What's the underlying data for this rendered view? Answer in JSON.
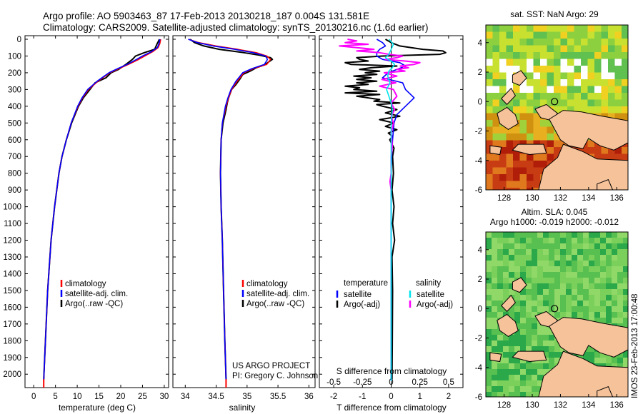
{
  "header": {
    "line1": "Argo profile: AO 5903463_87 17-Feb-2013 20130218_187 0.004S 131.581E",
    "line2": "Climatology: CARS2009. Satellite-adjusted climatology: synTS_20130216.nc (1.6d earlier)"
  },
  "colors": {
    "climatology": "#ff0000",
    "satellite": "#0000ff",
    "argo": "#000000",
    "sat_salinity": "#00e5ee",
    "argo_salinity": "#ff00ff",
    "land": "#f5c29a"
  },
  "footer": {
    "project": "US ARGO PROJECT",
    "pi": "PI: Gregory C. Johnson",
    "credit": "IMOS 23-Feb-2013 17:00:48"
  },
  "chart_data": [
    {
      "type": "line",
      "id": "temperature",
      "xlabel": "temperature (deg C)",
      "xlim": [
        -2,
        31
      ],
      "xticks": [
        0,
        5,
        10,
        15,
        20,
        25,
        30
      ],
      "ylim": [
        2080,
        0
      ],
      "yticks": [
        0,
        100,
        200,
        300,
        400,
        500,
        600,
        700,
        800,
        900,
        1000,
        1100,
        1200,
        1300,
        1400,
        1500,
        1600,
        1700,
        1800,
        1900,
        2000
      ],
      "legend": [
        "climatology",
        "satellite-adj. clim.",
        "Argo(..raw -QC)"
      ],
      "series": [
        {
          "name": "climatology",
          "depth": [
            0,
            25,
            50,
            75,
            100,
            125,
            150,
            175,
            200,
            250,
            300,
            350,
            400,
            500,
            600,
            700,
            800,
            1000,
            1200,
            1500,
            1800,
            2040
          ],
          "values": [
            29.2,
            29,
            28.6,
            27.3,
            25.5,
            23.8,
            21.8,
            19.6,
            17.5,
            14.8,
            12.6,
            11.2,
            10.2,
            8.6,
            7.5,
            6.5,
            5.8,
            4.8,
            4.0,
            3.2,
            2.7,
            2.3
          ]
        },
        {
          "name": "satellite-adj. clim.",
          "depth": [
            0,
            25,
            50,
            75,
            100,
            125,
            150,
            175,
            200,
            250,
            300,
            350,
            400,
            500,
            600,
            700,
            800,
            1000,
            1200,
            1500,
            1800,
            2040
          ],
          "values": [
            29.0,
            28.8,
            28.4,
            27.0,
            25.0,
            23.3,
            21.5,
            19.3,
            17.3,
            14.6,
            12.4,
            11.1,
            10.1,
            8.6,
            7.5,
            6.5,
            5.8,
            4.8,
            4.0,
            3.2,
            2.7,
            2.3
          ]
        },
        {
          "name": "Argo(..raw -QC)",
          "depth": [
            0,
            10,
            30,
            60,
            80,
            100,
            120,
            150,
            180,
            200,
            230,
            260,
            300,
            350,
            400,
            500,
            600,
            700,
            800,
            1000,
            1200,
            1500,
            1800,
            2030
          ],
          "values": [
            28.9,
            28.7,
            28.3,
            27.8,
            25.4,
            23.4,
            22.7,
            21.2,
            19.5,
            17.8,
            16.6,
            14.1,
            12.9,
            11.4,
            10.3,
            8.7,
            7.5,
            6.5,
            5.8,
            4.8,
            4.0,
            3.2,
            2.7,
            2.3
          ]
        }
      ]
    },
    {
      "type": "line",
      "id": "salinity",
      "xlabel": "salinity",
      "xlim": [
        33.8,
        36.1
      ],
      "xticks": [
        34,
        34.5,
        35,
        35.5,
        36
      ],
      "xticklabels": [
        "34",
        "34.5",
        "35",
        "35.5",
        "36"
      ],
      "ylim": [
        2080,
        0
      ],
      "legend": [
        "climatology",
        "satellite-adj. clim.",
        "Argo(..raw -QC)"
      ],
      "series": [
        {
          "name": "climatology",
          "depth": [
            0,
            20,
            40,
            60,
            80,
            100,
            120,
            150,
            175,
            200,
            250,
            300,
            350,
            400,
            500,
            600,
            800,
            1000,
            1200,
            1500,
            1800,
            2040
          ],
          "values": [
            34.05,
            34.22,
            34.5,
            34.85,
            35.15,
            35.32,
            35.38,
            35.32,
            35.1,
            34.95,
            34.84,
            34.75,
            34.7,
            34.66,
            34.6,
            34.58,
            34.57,
            34.58,
            34.6,
            34.62,
            34.64,
            34.66
          ]
        },
        {
          "name": "satellite-adj. clim.",
          "depth": [
            0,
            20,
            40,
            60,
            80,
            100,
            120,
            150,
            175,
            200,
            250,
            300,
            350,
            400,
            500,
            600,
            800,
            1000,
            1200,
            1500,
            1800,
            2040
          ],
          "values": [
            34.05,
            34.2,
            34.45,
            34.8,
            35.1,
            35.3,
            35.33,
            35.28,
            35.08,
            34.93,
            34.82,
            34.74,
            34.69,
            34.65,
            34.6,
            34.58,
            34.57,
            34.58,
            34.6,
            34.62,
            34.64,
            34.66
          ]
        },
        {
          "name": "Argo(..raw -QC)",
          "depth": [
            0,
            20,
            40,
            60,
            80,
            95,
            110,
            120,
            135,
            150,
            170,
            190,
            210,
            240,
            270,
            300,
            330,
            350,
            380,
            420,
            500,
            600,
            800,
            1000,
            1200,
            1500,
            1800,
            2030
          ],
          "values": [
            34.08,
            34.15,
            34.3,
            34.55,
            34.95,
            35.2,
            35.38,
            35.41,
            35.35,
            35.3,
            35.15,
            35.05,
            34.93,
            34.88,
            34.82,
            34.75,
            34.72,
            34.7,
            34.68,
            34.66,
            34.61,
            34.58,
            34.57,
            34.58,
            34.6,
            34.62,
            34.64,
            34.66
          ]
        }
      ]
    },
    {
      "type": "line",
      "id": "difference",
      "xlabel": "T difference from climatology",
      "xlabel_top": "S difference from climatology",
      "xlim": [
        -2.5,
        2.5
      ],
      "xticks": [
        -2,
        -1,
        0,
        1,
        2
      ],
      "xticks_top": [
        -0.5,
        -0.25,
        0,
        0.25,
        0.5
      ],
      "ylim": [
        2080,
        0
      ],
      "legend_left_title": "temperature",
      "legend_right_title": "salinity",
      "legend": [
        "satellite",
        "Argo(-adj)",
        "satellite",
        "Argo(-adj)"
      ],
      "series": [
        {
          "name": "satellite",
          "depth": [
            0,
            20,
            40,
            60,
            80,
            100,
            120,
            140,
            160,
            180,
            200,
            230,
            260,
            300,
            350,
            400,
            450,
            500,
            600,
            700,
            800,
            1000,
            1200,
            1500,
            1800,
            2040
          ],
          "values": [
            -0.5,
            -0.3,
            -0.2,
            -0.4,
            -0.5,
            -0.5,
            -0.3,
            0.3,
            0.5,
            0.2,
            -0.1,
            -0.3,
            0.4,
            0.5,
            0.8,
            0.5,
            0.2,
            0.1,
            0.05,
            0.02,
            0,
            0,
            0,
            0,
            0,
            0
          ]
        },
        {
          "name": "Argo(-adj)",
          "depth": [
            0,
            20,
            40,
            60,
            70,
            80,
            90,
            100,
            110,
            120,
            130,
            140,
            150,
            160,
            170,
            180,
            190,
            200,
            210,
            220,
            230,
            240,
            250,
            260,
            270,
            280,
            290,
            300,
            310,
            320,
            330,
            340,
            350,
            360,
            370,
            380,
            390,
            400,
            420,
            440,
            460,
            480,
            500,
            520,
            540,
            560,
            580,
            600,
            650,
            700,
            800,
            900,
            1000,
            1100,
            1200,
            1300,
            1500,
            1800,
            2030
          ],
          "values": [
            -0.2,
            0,
            0.3,
            1.1,
            1.8,
            1.9,
            1.7,
            -0.3,
            -1.2,
            -1.1,
            -0.8,
            -1.6,
            -1.4,
            0.2,
            -0.7,
            -1.1,
            -0.4,
            -0.9,
            -0.5,
            -1.3,
            -0.7,
            -1.2,
            -0.5,
            -1.2,
            -0.8,
            -1.6,
            -1.1,
            -1.3,
            -0.5,
            -1.6,
            -0.4,
            -1.2,
            -0.8,
            -0.4,
            -0.6,
            0.3,
            -0.5,
            -0.3,
            0.2,
            -0.2,
            0.3,
            -0.4,
            0.1,
            -0.2,
            0.2,
            -0.1,
            0.05,
            -0.05,
            0.1,
            0.05,
            0.08,
            0.03,
            0.1,
            0.05,
            0.12,
            0.03,
            0.05,
            0.04,
            0.03
          ]
        },
        {
          "name": "sat salinity",
          "depth": [
            0,
            30,
            60,
            90,
            110,
            130,
            150,
            170,
            190,
            220,
            260,
            300,
            340,
            380,
            420,
            500,
            600,
            800,
            1000,
            1200,
            1500,
            1800,
            2040
          ],
          "values": [
            -0.02,
            0.02,
            0,
            -0.02,
            -0.05,
            0,
            0.03,
            0.01,
            -0.02,
            -0.03,
            -0.01,
            -0.04,
            -0.02,
            0,
            0.01,
            0,
            0,
            0,
            0,
            0,
            0,
            0,
            0
          ]
        },
        {
          "name": "Argo salinity",
          "depth": [
            0,
            10,
            20,
            30,
            40,
            50,
            60,
            70,
            80,
            90,
            100,
            110,
            120,
            130,
            140,
            150,
            160,
            170,
            180,
            190,
            200,
            220,
            240,
            260,
            280,
            300,
            340,
            380,
            420,
            460,
            500,
            560,
            640,
            700,
            800,
            850,
            900
          ],
          "values": [
            -0.38,
            -0.3,
            -0.4,
            -0.2,
            -0.45,
            -0.3,
            -0.15,
            -0.3,
            -0.1,
            -0.02,
            0.1,
            0.05,
            -0.05,
            0.12,
            0.25,
            0.2,
            0.08,
            0.15,
            0.05,
            0.12,
            -0.06,
            0.05,
            -0.08,
            0.04,
            -0.1,
            0.02,
            0.05,
            0,
            0.03,
            0,
            0.02,
            0,
            0.01,
            0,
            0,
            -0.01,
            0
          ]
        }
      ]
    },
    {
      "type": "heatmap",
      "id": "sst-map",
      "title": "sat. SST: NaN Argo: 29",
      "xlim": [
        126.7,
        136.8
      ],
      "ylim": [
        -6,
        5.2
      ],
      "xticks": [
        128,
        130,
        132,
        134,
        136
      ],
      "yticks": [
        4,
        2,
        0,
        -2,
        -4,
        -6
      ],
      "argo_position": [
        131.581,
        -0.004
      ]
    },
    {
      "type": "heatmap",
      "id": "sla-map",
      "title": "Altim. SLA: 0.045",
      "subtitle": "Argo h1000: -0.019 h2000: -0.012",
      "xlim": [
        126.7,
        136.8
      ],
      "ylim": [
        -6,
        5.2
      ],
      "xticks": [
        128,
        130,
        132,
        134,
        136
      ],
      "yticks": [
        4,
        2,
        0,
        -2,
        -4,
        -6
      ],
      "argo_position": [
        131.581,
        -0.004
      ]
    }
  ]
}
